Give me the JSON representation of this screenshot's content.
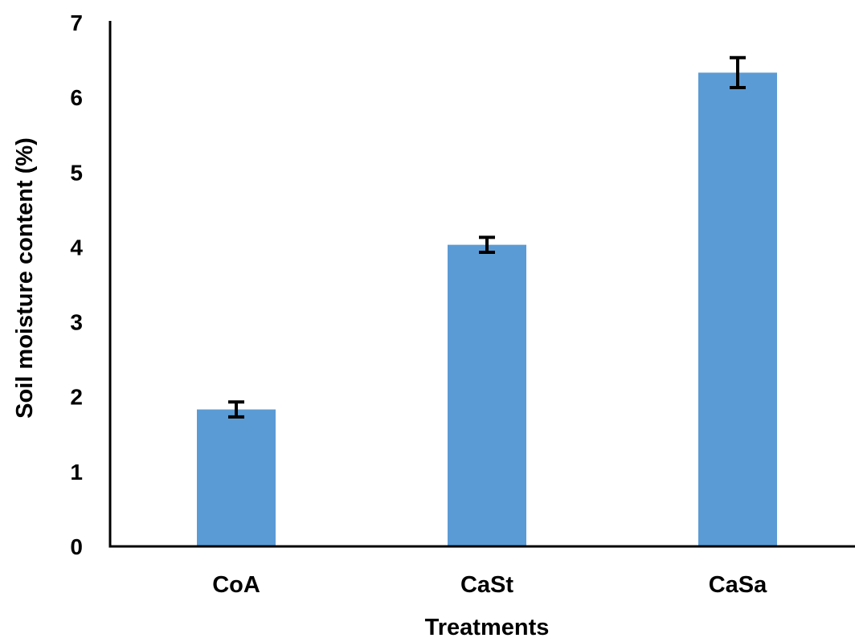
{
  "chart_data": {
    "type": "bar",
    "title": "",
    "xlabel": "Treatments",
    "ylabel": "Soil moisture content (%)",
    "ylim": [
      0,
      7
    ],
    "yticks": [
      "0",
      "1",
      "2",
      "3",
      "4",
      "5",
      "6",
      "7"
    ],
    "categories": [
      "CoA",
      "CaSt",
      "CaSa"
    ],
    "values": [
      1.83,
      4.03,
      6.33
    ],
    "errors": [
      0.1,
      0.1,
      0.2
    ],
    "grid": false,
    "legend": "none",
    "colors": {
      "bar": "#5b9bd5",
      "axis": "#000000",
      "error_bar": "#000000"
    }
  }
}
